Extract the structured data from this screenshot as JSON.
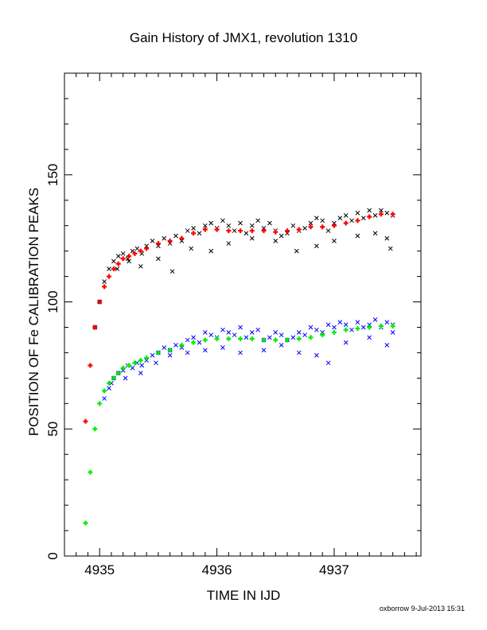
{
  "chart_data": {
    "type": "scatter",
    "title": "Gain History of JMX1, revolution 1310",
    "xlabel": "TIME IN IJD",
    "ylabel": "POSITION OF Fe CALIBRATION PEAKS",
    "xlim": [
      4934.7,
      4937.74
    ],
    "ylim": [
      0,
      190
    ],
    "x_ticks": [
      "4935",
      "4936",
      "4937"
    ],
    "y_ticks": [
      "0",
      "50",
      "100",
      "150"
    ],
    "grid": false,
    "credit": "oxborrow  9-Jul-2013 15:31",
    "colors": {
      "upper_raw": "#000000",
      "upper_fit": "#ff0000",
      "lower_raw": "#0000ff",
      "lower_fit": "#00ee00"
    },
    "series": [
      {
        "marker": "x",
        "color": "#000000",
        "x": [
          4934.96,
          4935.0,
          4935.04,
          4935.08,
          4935.12,
          4935.16,
          4935.2,
          4935.24,
          4935.28,
          4935.32,
          4935.36,
          4935.4,
          4935.45,
          4935.5,
          4935.55,
          4935.6,
          4935.65,
          4935.7,
          4935.75,
          4935.8,
          4935.85,
          4935.9,
          4935.95,
          4936.0,
          4936.05,
          4936.1,
          4936.15,
          4936.2,
          4936.25,
          4936.3,
          4936.35,
          4936.4,
          4936.45,
          4936.5,
          4936.55,
          4936.6,
          4936.65,
          4936.7,
          4936.75,
          4936.8,
          4936.85,
          4936.9,
          4936.95,
          4937.0,
          4937.05,
          4937.1,
          4937.15,
          4937.2,
          4937.25,
          4937.3,
          4937.35,
          4937.4,
          4937.45,
          4937.5
        ],
        "y": [
          90,
          100,
          108,
          113,
          116,
          118,
          119,
          117,
          120,
          121,
          119,
          122,
          124,
          122,
          125,
          123,
          126,
          124,
          128,
          129,
          127,
          130,
          131,
          129,
          132,
          130,
          128,
          131,
          127,
          130,
          132,
          129,
          131,
          128,
          126,
          127,
          130,
          128,
          129,
          131,
          133,
          132,
          128,
          131,
          133,
          134,
          132,
          135,
          133,
          136,
          134,
          136,
          135,
          134
        ]
      },
      {
        "marker": "x",
        "color": "#000000",
        "x": [
          4935.15,
          4935.25,
          4935.35,
          4935.5,
          4935.62,
          4935.78,
          4935.95,
          4936.1,
          4936.3,
          4936.5,
          4936.68,
          4936.85,
          4937.0,
          4937.2,
          4937.35,
          4937.45,
          4937.48
        ],
        "y": [
          113,
          116,
          114,
          117,
          112,
          121,
          120,
          123,
          125,
          124,
          120,
          122,
          124,
          126,
          127,
          125,
          121
        ]
      },
      {
        "marker": "+",
        "color": "#ff0000",
        "x": [
          4934.88,
          4934.92,
          4934.96,
          4935.0,
          4935.04,
          4935.08,
          4935.12,
          4935.16,
          4935.2,
          4935.25,
          4935.3,
          4935.35,
          4935.4,
          4935.5,
          4935.6,
          4935.7,
          4935.8,
          4935.9,
          4936.0,
          4936.1,
          4936.2,
          4936.3,
          4936.4,
          4936.5,
          4936.6,
          4936.7,
          4936.8,
          4936.9,
          4937.0,
          4937.1,
          4937.2,
          4937.3,
          4937.4,
          4937.5
        ],
        "y": [
          53,
          75,
          90,
          100,
          106,
          110,
          113,
          115,
          117,
          118,
          119,
          120,
          121,
          123,
          124,
          125,
          127,
          128.5,
          128.5,
          128,
          128,
          128,
          128,
          127.5,
          128,
          128.5,
          129.5,
          129.5,
          130,
          131,
          132,
          133.5,
          134.5,
          134.5
        ]
      },
      {
        "marker": "x",
        "color": "#0000ff",
        "x": [
          4935.04,
          4935.08,
          4935.12,
          4935.16,
          4935.2,
          4935.24,
          4935.28,
          4935.32,
          4935.36,
          4935.4,
          4935.45,
          4935.5,
          4935.55,
          4935.6,
          4935.65,
          4935.7,
          4935.75,
          4935.8,
          4935.85,
          4935.9,
          4935.95,
          4936.0,
          4936.05,
          4936.1,
          4936.15,
          4936.2,
          4936.25,
          4936.3,
          4936.35,
          4936.4,
          4936.45,
          4936.5,
          4936.55,
          4936.6,
          4936.65,
          4936.7,
          4936.75,
          4936.8,
          4936.85,
          4936.9,
          4936.95,
          4937.0,
          4937.05,
          4937.1,
          4937.15,
          4937.2,
          4937.25,
          4937.3,
          4937.35,
          4937.4,
          4937.45,
          4937.5
        ],
        "y": [
          62,
          66,
          70,
          72,
          73,
          75,
          74,
          76,
          75,
          77,
          79,
          80,
          82,
          81,
          83,
          82,
          85,
          86,
          84,
          88,
          87,
          86,
          89,
          88,
          87,
          90,
          86,
          88,
          89,
          85,
          86,
          88,
          87,
          85,
          86,
          88,
          87,
          90,
          89,
          88,
          91,
          90,
          92,
          91,
          89,
          92,
          90,
          91,
          93,
          90,
          92,
          91
        ]
      },
      {
        "marker": "x",
        "color": "#0000ff",
        "x": [
          4935.1,
          4935.22,
          4935.35,
          4935.48,
          4935.6,
          4935.75,
          4935.9,
          4936.05,
          4936.2,
          4936.4,
          4936.55,
          4936.7,
          4936.85,
          4936.95,
          4937.1,
          4937.3,
          4937.45,
          4937.5
        ],
        "y": [
          68,
          70,
          72,
          76,
          79,
          80,
          81,
          82,
          80,
          81,
          83,
          80,
          79,
          76,
          84,
          86,
          83,
          88
        ]
      },
      {
        "marker": "+",
        "color": "#00ee00",
        "x": [
          4934.88,
          4934.92,
          4934.96,
          4935.0,
          4935.04,
          4935.08,
          4935.12,
          4935.16,
          4935.2,
          4935.25,
          4935.3,
          4935.35,
          4935.4,
          4935.5,
          4935.6,
          4935.7,
          4935.8,
          4935.9,
          4936.0,
          4936.1,
          4936.2,
          4936.3,
          4936.4,
          4936.5,
          4936.6,
          4936.7,
          4936.8,
          4936.9,
          4937.0,
          4937.1,
          4937.2,
          4937.3,
          4937.4,
          4937.5
        ],
        "y": [
          13,
          33,
          50,
          60,
          65,
          68,
          70,
          72,
          74,
          75,
          76,
          77,
          78,
          80,
          81,
          83,
          84,
          85,
          85.5,
          85.5,
          85.5,
          85.5,
          85,
          85,
          85,
          85.5,
          86,
          87,
          88,
          89,
          89.5,
          90,
          90.5,
          90.5
        ]
      }
    ]
  }
}
